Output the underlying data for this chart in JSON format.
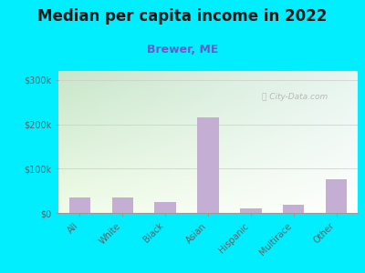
{
  "title": "Median per capita income in 2022",
  "subtitle": "Brewer, ME",
  "categories": [
    "All",
    "White",
    "Black",
    "Asian",
    "Hispanic",
    "Multirace",
    "Other"
  ],
  "values": [
    35000,
    35000,
    25000,
    215000,
    10000,
    18000,
    75000
  ],
  "bar_color": "#c4aed4",
  "background_outer": "#00eeff",
  "background_inner_tl": "#c8e6c9",
  "background_inner_tr": "#e8f5f0",
  "background_inner_bl": "#f0fce8",
  "background_inner_br": "#ffffff",
  "title_color": "#1a1a1a",
  "subtitle_color": "#6a5acd",
  "tick_label_color": "#606060",
  "ytick_labels": [
    "$0",
    "$100k",
    "$200k",
    "$300k"
  ],
  "ytick_values": [
    0,
    100000,
    200000,
    300000
  ],
  "ylim": [
    0,
    320000
  ],
  "watermark": "City-Data.com",
  "title_fontsize": 12,
  "subtitle_fontsize": 9,
  "tick_fontsize": 7,
  "bar_width": 0.5
}
